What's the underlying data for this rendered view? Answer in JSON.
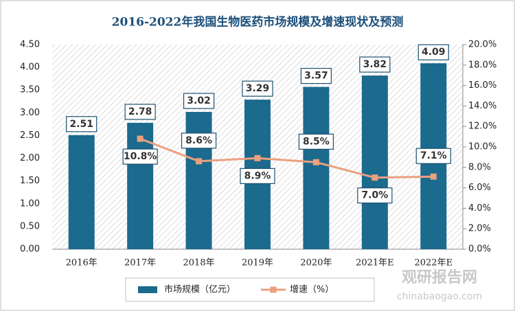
{
  "chart_data": {
    "type": "bar_line",
    "title": "2016-2022年我国生物医药市场规模及增速现状及预测",
    "categories": [
      "2016年",
      "2017年",
      "2018年",
      "2019年",
      "2020年",
      "2021年E",
      "2022年E"
    ],
    "series": [
      {
        "name": "市场规模（亿元）",
        "color": "#1c6a8d",
        "type": "bar",
        "values": [
          2.51,
          2.78,
          3.02,
          3.29,
          3.57,
          3.82,
          4.09
        ]
      },
      {
        "name": "增速（%）",
        "color": "#eba07f",
        "type": "line",
        "axis": "y2",
        "values": [
          null,
          10.8,
          8.6,
          8.9,
          8.5,
          7.0,
          7.1
        ],
        "value_labels": [
          null,
          "10.8%",
          "8.6%",
          "8.9%",
          "8.5%",
          "7.0%",
          "7.1%"
        ]
      }
    ],
    "ylim": [
      0,
      4.5
    ],
    "yticks": [
      {
        "value": 0,
        "label": "0.00"
      },
      {
        "value": 0.5,
        "label": "0.50"
      },
      {
        "value": 1,
        "label": "1.00"
      },
      {
        "value": 1.5,
        "label": "1.50"
      },
      {
        "value": 2,
        "label": "2.00"
      },
      {
        "value": 2.5,
        "label": "2.50"
      },
      {
        "value": 3,
        "label": "3.00"
      },
      {
        "value": 3.5,
        "label": "3.50"
      },
      {
        "value": 4,
        "label": "4.00"
      },
      {
        "value": 4.5,
        "label": "4.50"
      }
    ],
    "y2lim": [
      0,
      20
    ],
    "y2ticks": [
      {
        "value": 0,
        "label": "0.0%"
      },
      {
        "value": 2,
        "label": "2.0%"
      },
      {
        "value": 4,
        "label": "4.0%"
      },
      {
        "value": 6,
        "label": "6.0%"
      },
      {
        "value": 8,
        "label": "8.0%"
      },
      {
        "value": 10,
        "label": "10.0%"
      },
      {
        "value": 12,
        "label": "12.0%"
      },
      {
        "value": 14,
        "label": "14.0%"
      },
      {
        "value": 16,
        "label": "16.0%"
      },
      {
        "value": 18,
        "label": "18.0%"
      },
      {
        "value": 20,
        "label": "20.0%"
      }
    ],
    "legend": "bottom",
    "watermark": {
      "text": "观研报告网",
      "url": "chinabaogao.com"
    }
  }
}
